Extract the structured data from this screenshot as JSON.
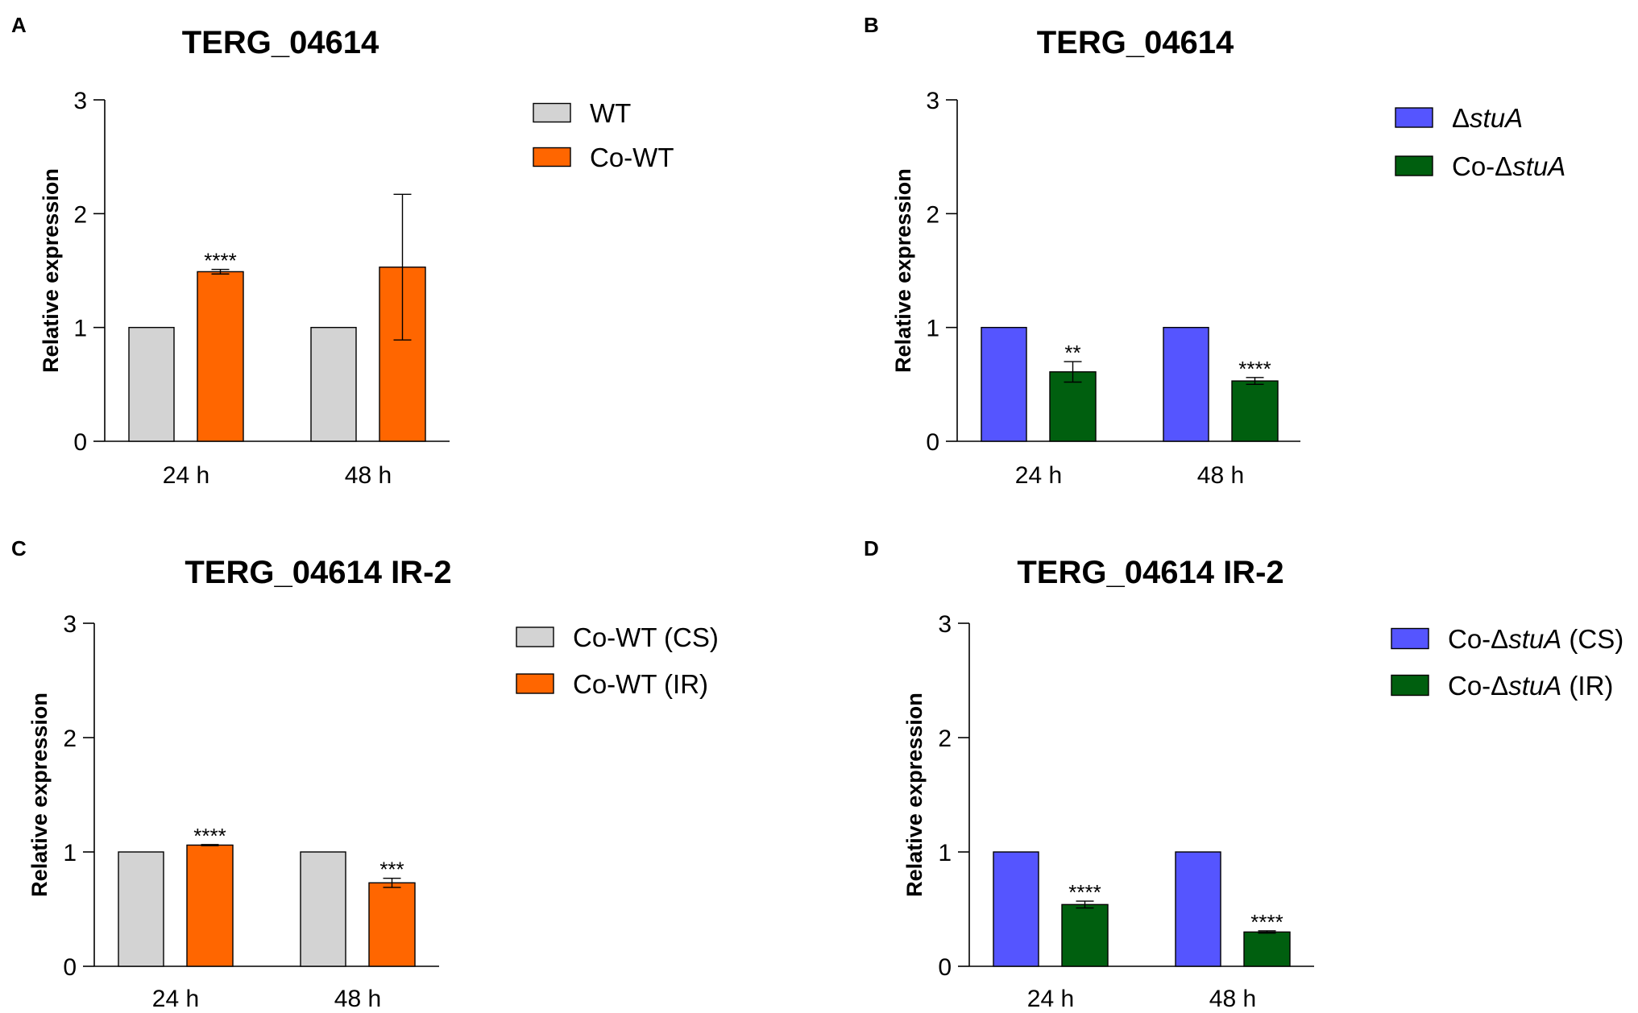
{
  "charts": [
    {
      "panel": "A",
      "type": "bar",
      "title": "TERG_04614",
      "ylabel": "Relative expression",
      "xlabel": "",
      "ylim": [
        0,
        3
      ],
      "yticks": [
        "0",
        "1",
        "2",
        "3"
      ],
      "categories": [
        "24 h",
        "48 h"
      ],
      "series": [
        {
          "name": "WT",
          "name_main": "WT",
          "name_italic": "",
          "name_tail": "",
          "color": "#d3d3d3",
          "values": [
            1.0,
            1.0
          ],
          "errors": [
            0,
            0
          ],
          "significance": [
            "",
            ""
          ]
        },
        {
          "name": "Co-WT",
          "name_main": "Co-WT",
          "name_italic": "",
          "name_tail": "",
          "color": "#ff6600",
          "values": [
            1.49,
            1.53
          ],
          "errors": [
            0.02,
            0.64
          ],
          "significance": [
            "****",
            ""
          ]
        }
      ]
    },
    {
      "panel": "B",
      "type": "bar",
      "title": "TERG_04614",
      "ylabel": "Relative expression",
      "xlabel": "",
      "ylim": [
        0,
        3
      ],
      "yticks": [
        "0",
        "1",
        "2",
        "3"
      ],
      "categories": [
        "24 h",
        "48 h"
      ],
      "series": [
        {
          "name": "ΔstuA",
          "name_main": "Δ",
          "name_italic": "stuA",
          "name_tail": "",
          "color": "#5555ff",
          "values": [
            1.0,
            1.0
          ],
          "errors": [
            0,
            0
          ],
          "significance": [
            "",
            ""
          ]
        },
        {
          "name": "Co-ΔstuA",
          "name_main": "Co-Δ",
          "name_italic": "stuA",
          "name_tail": "",
          "color": "#005f0f",
          "values": [
            0.61,
            0.53
          ],
          "errors": [
            0.09,
            0.03
          ],
          "significance": [
            "**",
            "****"
          ]
        }
      ]
    },
    {
      "panel": "C",
      "type": "bar",
      "title": "TERG_04614 IR-2",
      "ylabel": "Relative expression",
      "xlabel": "",
      "ylim": [
        0,
        3
      ],
      "yticks": [
        "0",
        "1",
        "2",
        "3"
      ],
      "categories": [
        "24 h",
        "48 h"
      ],
      "series": [
        {
          "name": "Co-WT (CS)",
          "name_main": "Co-WT (CS)",
          "name_italic": "",
          "name_tail": "",
          "color": "#d3d3d3",
          "values": [
            1.0,
            1.0
          ],
          "errors": [
            0,
            0
          ],
          "significance": [
            "",
            ""
          ]
        },
        {
          "name": "Co-WT (IR)",
          "name_main": "Co-WT (IR)",
          "name_italic": "",
          "name_tail": "",
          "color": "#ff6600",
          "values": [
            1.06,
            0.73
          ],
          "errors": [
            0.005,
            0.04
          ],
          "significance": [
            "****",
            "***"
          ]
        }
      ]
    },
    {
      "panel": "D",
      "type": "bar",
      "title": "TERG_04614 IR-2",
      "ylabel": "Relative expression",
      "xlabel": "",
      "ylim": [
        0,
        3
      ],
      "yticks": [
        "0",
        "1",
        "2",
        "3"
      ],
      "categories": [
        "24 h",
        "48 h"
      ],
      "series": [
        {
          "name": "Co-ΔstuA (CS)",
          "name_main": "Co-Δ",
          "name_italic": "stuA",
          "name_tail": " (CS)",
          "color": "#5555ff",
          "values": [
            1.0,
            1.0
          ],
          "errors": [
            0,
            0
          ],
          "significance": [
            "",
            ""
          ]
        },
        {
          "name": "Co-ΔstuA (IR)",
          "name_main": "Co-Δ",
          "name_italic": "stuA",
          "name_tail": " (IR)",
          "color": "#005f0f",
          "values": [
            0.54,
            0.3
          ],
          "errors": [
            0.03,
            0.01
          ],
          "significance": [
            "****",
            "****"
          ]
        }
      ]
    }
  ]
}
